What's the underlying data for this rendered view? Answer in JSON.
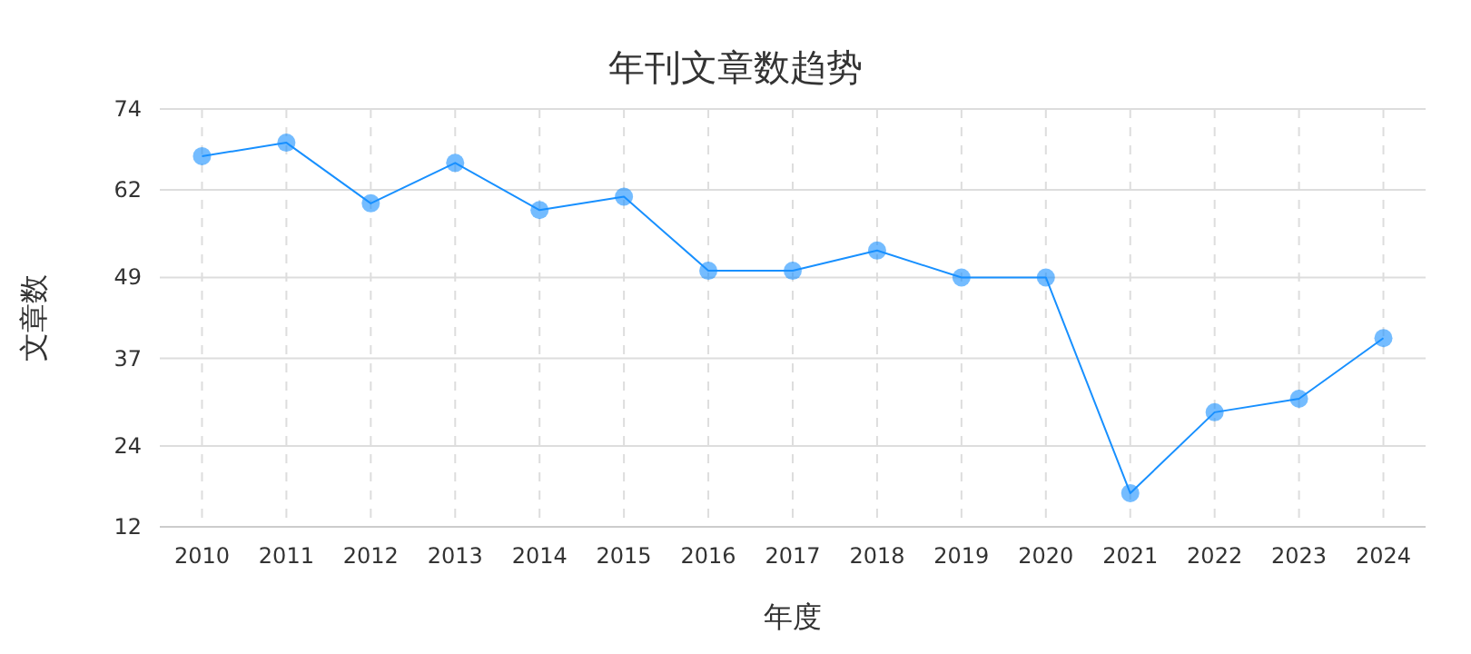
{
  "chart_data": {
    "type": "line",
    "title": "年刊文章数趋势",
    "xlabel": "年度",
    "ylabel": "文章数",
    "categories": [
      "2010",
      "2011",
      "2012",
      "2013",
      "2014",
      "2015",
      "2016",
      "2017",
      "2018",
      "2019",
      "2020",
      "2021",
      "2022",
      "2023",
      "2024"
    ],
    "series": [
      {
        "color": "#1890ff",
        "values": [
          67,
          69,
          60,
          66,
          59,
          61,
          50,
          50,
          53,
          49,
          49,
          17,
          29,
          31,
          40
        ]
      }
    ],
    "ylim": [
      12,
      74
    ],
    "yticks": [
      12,
      24,
      37,
      49,
      62,
      74
    ],
    "grid": true,
    "marker": "circle",
    "line_style": "solid"
  }
}
